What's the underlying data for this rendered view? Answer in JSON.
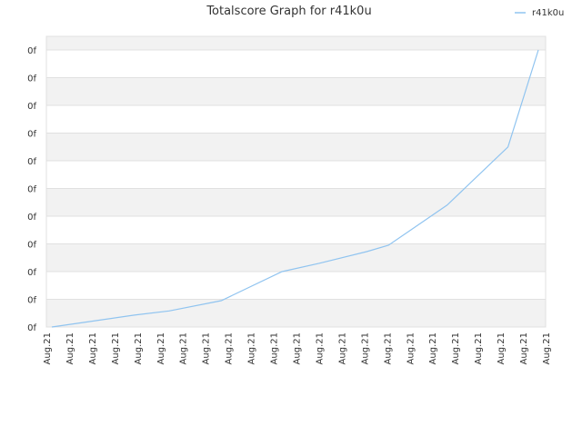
{
  "chart_data": {
    "type": "line",
    "title": "Totalscore Graph for r41k0u",
    "xlabel": "",
    "ylabel": "",
    "legend": {
      "placement": "top-right",
      "entries": [
        "r41k0u"
      ]
    },
    "grid": true,
    "y_ticks": [
      "0f",
      "0f",
      "0f",
      "0f",
      "0f",
      "0f",
      "0f",
      "0f",
      "0f",
      "0f",
      "0f"
    ],
    "x_ticks": [
      "Aug.21",
      "Aug.21",
      "Aug.21",
      "Aug.21",
      "Aug.21",
      "Aug.21",
      "Aug.21",
      "Aug.21",
      "Aug.21",
      "Aug.21",
      "Aug.21",
      "Aug.21",
      "Aug.21",
      "Aug.21",
      "Aug.21",
      "Aug.21",
      "Aug.21",
      "Aug.21",
      "Aug.21",
      "Aug.21",
      "Aug.21",
      "Aug.21",
      "Aug.21"
    ],
    "ylim": [
      0,
      10
    ],
    "series": [
      {
        "name": "r41k0u",
        "color": "#90c4f0",
        "x": [
          0.0,
          1.6,
          3.8,
          5.4,
          7.8,
          10.6,
          12.3,
          14.5,
          15.5,
          18.2,
          21.0,
          22.4
        ],
        "y": [
          0.0,
          0.18,
          0.43,
          0.58,
          0.95,
          2.0,
          2.3,
          2.72,
          2.95,
          4.4,
          6.5,
          10.0
        ]
      }
    ],
    "xlim": [
      0,
      22.4
    ],
    "colors": {
      "band": "#f2f2f2",
      "grid": "#e0e0e0",
      "axis": "#cccccc"
    }
  }
}
